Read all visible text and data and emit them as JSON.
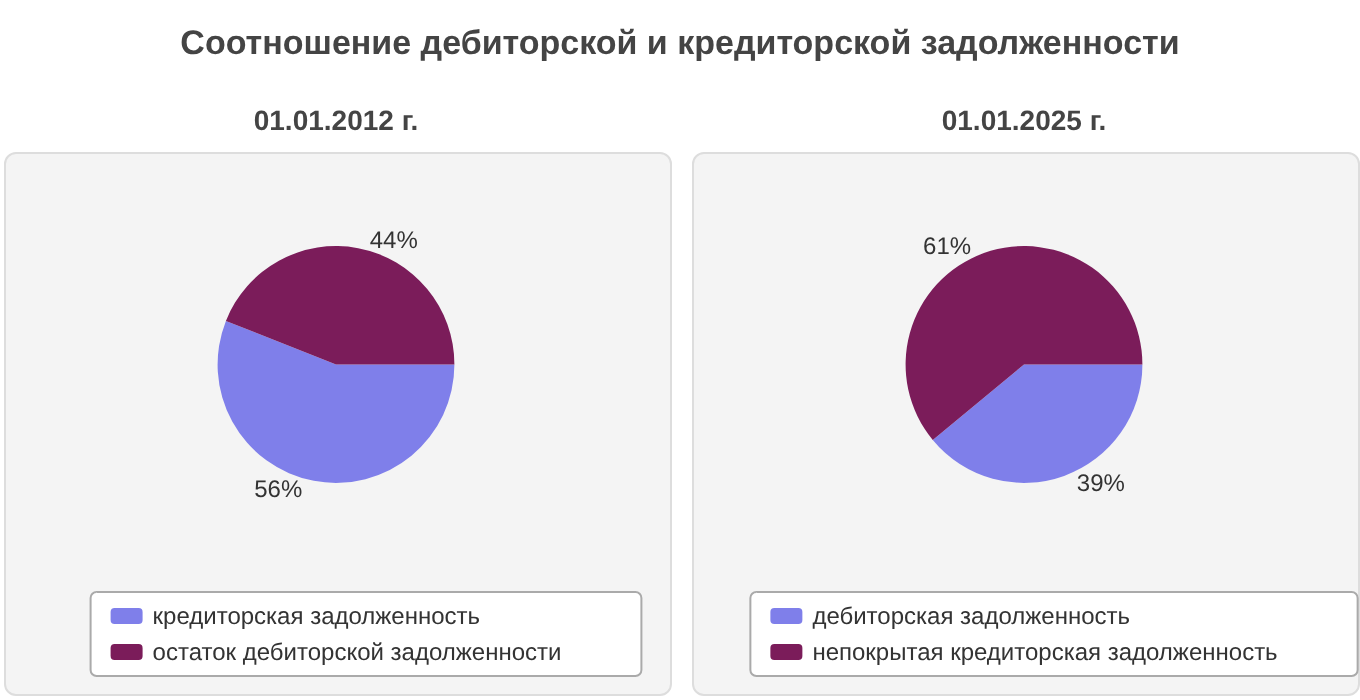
{
  "chart_data": [
    {
      "type": "pie",
      "title": "01.01.2012 г.",
      "annotations": [
        "Соотношение дебиторской и кредиторской задолженности"
      ],
      "categories": [
        "кредиторская задолженность",
        "остаток дебиторской задолженности"
      ],
      "values": [
        56,
        44
      ],
      "colors": [
        "#7f7fea",
        "#7b1c5a"
      ],
      "value_labels": [
        "56%",
        "44%"
      ],
      "legend": "bottom"
    },
    {
      "type": "pie",
      "title": "01.01.2025 г.",
      "categories": [
        "дебиторская задолженность",
        "непокрытая кредиторская задолженность"
      ],
      "values": [
        39,
        61
      ],
      "colors": [
        "#7f7fea",
        "#7b1c5a"
      ],
      "value_labels": [
        "39%",
        "61%"
      ],
      "legend": "bottom"
    }
  ]
}
